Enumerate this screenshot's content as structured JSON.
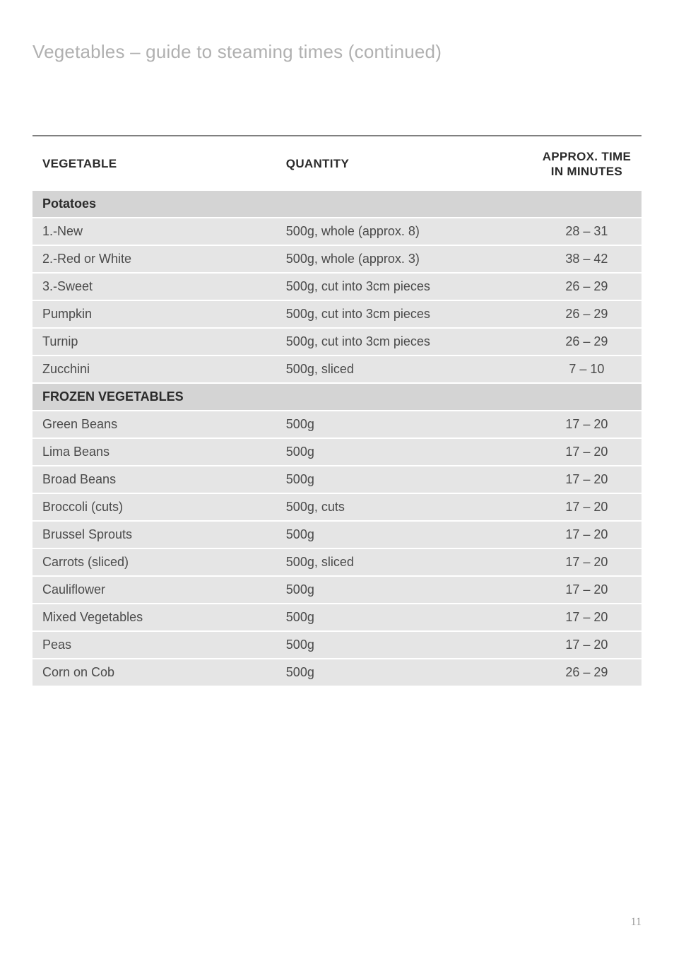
{
  "pageTitle": "Vegetables – guide to steaming times (continued)",
  "pageNumber": "11",
  "columns": {
    "veg": "VEGETABLE",
    "qty": "QUANTITY",
    "time1": "APPROX. TIME",
    "time2": "IN MINUTES"
  },
  "sections": [
    {
      "label": "Potatoes",
      "rows": [
        {
          "veg": "1.-New",
          "qty": "500g, whole (approx. 8)",
          "time": "28 – 31",
          "grouped": true
        },
        {
          "veg": "2.-Red or White",
          "qty": "500g, whole (approx. 3)",
          "time": "38 – 42",
          "grouped": true
        },
        {
          "veg": "3.-Sweet",
          "qty": "500g, cut into 3cm pieces",
          "time": "26 – 29",
          "grouped": true
        },
        {
          "veg": "Pumpkin",
          "qty": "500g, cut into 3cm pieces",
          "time": "26 – 29"
        },
        {
          "veg": "Turnip",
          "qty": "500g, cut into 3cm pieces",
          "time": "26 – 29"
        },
        {
          "veg": "Zucchini",
          "qty": "500g, sliced",
          "time": "7 – 10"
        }
      ]
    },
    {
      "label": "FROZEN VEGETABLES",
      "rows": [
        {
          "veg": "Green Beans",
          "qty": "500g",
          "time": "17 – 20"
        },
        {
          "veg": "Lima Beans",
          "qty": "500g",
          "time": "17 – 20"
        },
        {
          "veg": "Broad Beans",
          "qty": "500g",
          "time": "17 – 20"
        },
        {
          "veg": "Broccoli (cuts)",
          "qty": "500g, cuts",
          "time": "17 – 20"
        },
        {
          "veg": "Brussel Sprouts",
          "qty": "500g",
          "time": "17 – 20"
        },
        {
          "veg": "Carrots (sliced)",
          "qty": "500g, sliced",
          "time": "17 – 20"
        },
        {
          "veg": "Cauliflower",
          "qty": "500g",
          "time": "17 – 20"
        },
        {
          "veg": "Mixed Vegetables",
          "qty": "500g",
          "time": "17 – 20"
        },
        {
          "veg": "Peas",
          "qty": "500g",
          "time": "17 – 20"
        },
        {
          "veg": "Corn on Cob",
          "qty": "500g",
          "time": "26 – 29"
        }
      ]
    }
  ],
  "style": {
    "titleColor": "#b0b0b0",
    "headerTextColor": "#2b2b2b",
    "bodyTextColor": "#4a4a4a",
    "rowBg": "#e5e5e5",
    "sectionBg": "#d4d4d4",
    "topRuleColor": "#808080",
    "pageNumColor": "#9a9a9a",
    "titleFontSize": 26,
    "headerFontSize": 17,
    "bodyFontSize": 18
  }
}
